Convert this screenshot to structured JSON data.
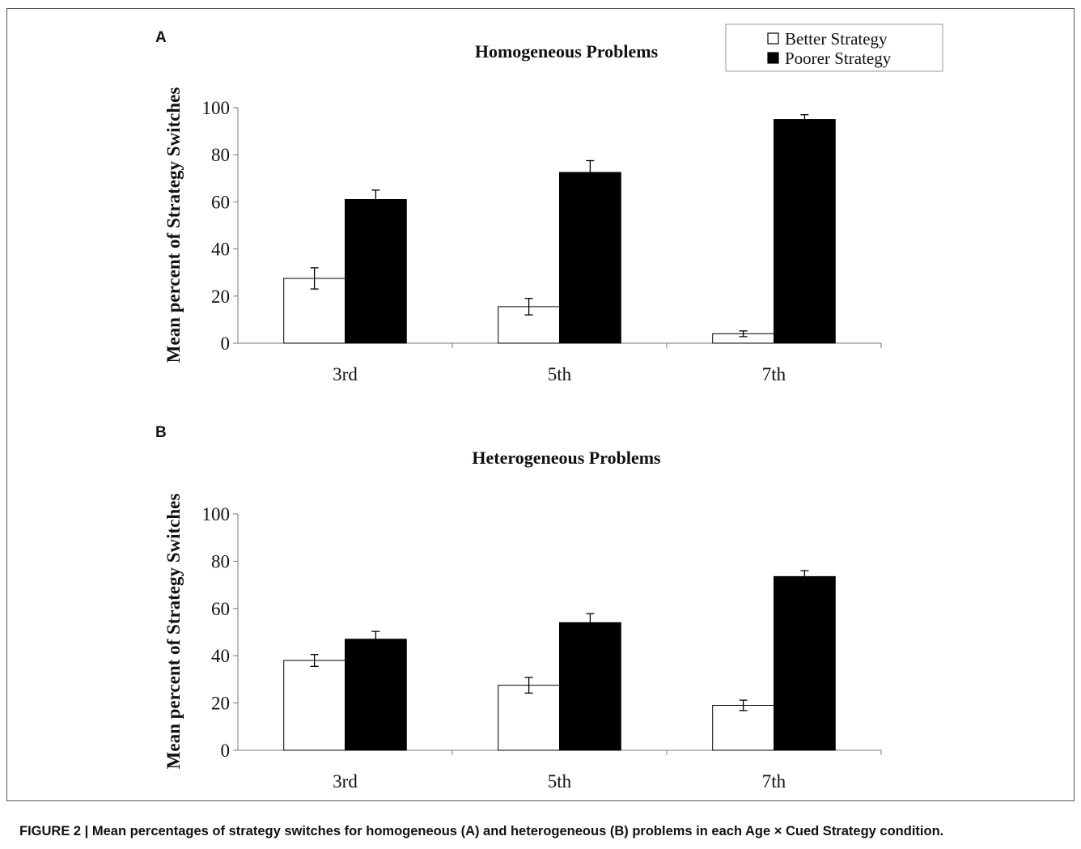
{
  "figure": {
    "caption": "FIGURE 2 | Mean percentages of strategy switches for homogeneous (A) and heterogeneous (B) problems in each Age × Cued Strategy condition."
  },
  "legend": {
    "items": [
      {
        "label": "Better Strategy",
        "color": "#ffffff"
      },
      {
        "label": "Poorer Strategy",
        "color": "#000000"
      }
    ]
  },
  "chart_data": [
    {
      "panel_label": "A",
      "type": "bar",
      "title": "Homogeneous Problems",
      "xlabel": "",
      "ylabel": "Mean percent of Strategy Switches",
      "ylim": [
        0,
        100
      ],
      "yticks": [
        0,
        20,
        40,
        60,
        80,
        100
      ],
      "categories": [
        "3rd",
        "5th",
        "7th"
      ],
      "series": [
        {
          "name": "Better Strategy",
          "color": "#ffffff",
          "values": [
            27.5,
            15.5,
            4
          ],
          "errors": [
            4.5,
            3.5,
            1.2
          ]
        },
        {
          "name": "Poorer Strategy",
          "color": "#000000",
          "values": [
            61,
            72.5,
            95
          ],
          "errors": [
            4,
            5,
            2
          ]
        }
      ],
      "grid": false,
      "legend_position": "top-right"
    },
    {
      "panel_label": "B",
      "type": "bar",
      "title": "Heterogeneous Problems",
      "xlabel": "",
      "ylabel": "Mean percent of Strategy Switches",
      "ylim": [
        0,
        100
      ],
      "yticks": [
        0,
        20,
        40,
        60,
        80,
        100
      ],
      "categories": [
        "3rd",
        "5th",
        "7th"
      ],
      "series": [
        {
          "name": "Better Strategy",
          "color": "#ffffff",
          "values": [
            38,
            27.5,
            19
          ],
          "errors": [
            2.5,
            3.3,
            2.2
          ]
        },
        {
          "name": "Poorer Strategy",
          "color": "#000000",
          "values": [
            47,
            54,
            73.5
          ],
          "errors": [
            3.3,
            3.8,
            2.5
          ]
        }
      ],
      "grid": false,
      "legend_position": "none"
    }
  ]
}
